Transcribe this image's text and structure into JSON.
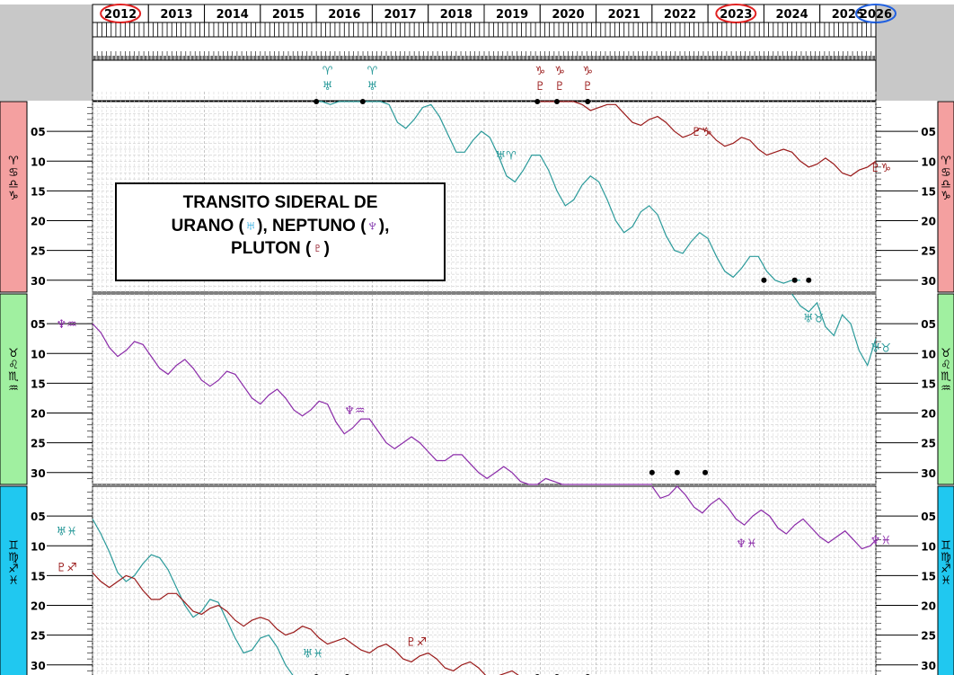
{
  "chart_data": {
    "type": "line",
    "title_parts": [
      "TRANSITO SIDERAL DE",
      "URANO (",
      "♅",
      "), NEPTUNO (",
      "♆",
      "),",
      "PLUTON (",
      "♇",
      ")"
    ],
    "years": [
      "2012",
      "2013",
      "2014",
      "2015",
      "2016",
      "2017",
      "2018",
      "2019",
      "2020",
      "2021",
      "2022",
      "2023",
      "2024",
      "2025",
      "2026"
    ],
    "circled_years": {
      "2012": "#e02020",
      "2023": "#e02020",
      "2026": "#2060e0"
    },
    "ytick_labels": [
      "05",
      "10",
      "15",
      "20",
      "25",
      "30"
    ],
    "bands": [
      {
        "signs": [
          "♈",
          "♋",
          "♎",
          "♑"
        ],
        "color": "#f4a0a0"
      },
      {
        "signs": [
          "♉",
          "♌",
          "♏",
          "♒"
        ],
        "color": "#a0f0a0"
      },
      {
        "signs": [
          "♊",
          "♍",
          "♐",
          "♓"
        ],
        "color": "#20c8f0"
      }
    ],
    "series": [
      {
        "planet": "Uranus",
        "color": "#2a9a9a",
        "segments": [
          {
            "band": 2,
            "x": [
              2012.0,
              2012.15,
              2012.3,
              2012.45,
              2012.6,
              2012.75,
              2012.9,
              2013.05,
              2013.2,
              2013.35,
              2013.5,
              2013.65,
              2013.8,
              2013.95,
              2014.1,
              2014.25,
              2014.4,
              2014.55,
              2014.7,
              2014.85,
              2015.0,
              2015.15,
              2015.3,
              2015.45,
              2015.6,
              2015.75,
              2015.9,
              2016.0
            ],
            "y": [
              5.5,
              8.0,
              11.0,
              14.5,
              16.0,
              15.0,
              13.0,
              11.5,
              12.0,
              14.0,
              17.0,
              20.0,
              22.0,
              21.0,
              19.0,
              19.5,
              22.5,
              25.5,
              28.0,
              27.5,
              25.5,
              25.0,
              27.0,
              30.0,
              32.0,
              33.0,
              34.0,
              34.5
            ]
          },
          {
            "band": 0,
            "x": [
              2016.0,
              2016.1,
              2016.25,
              2016.4,
              2016.55,
              2016.7,
              2016.85,
              2017.0,
              2017.15,
              2017.3,
              2017.45,
              2017.6,
              2017.75,
              2017.9,
              2018.05,
              2018.2,
              2018.35,
              2018.5,
              2018.65,
              2018.8,
              2018.95,
              2019.1,
              2019.25,
              2019.4,
              2019.55,
              2019.7,
              2019.85,
              2020.0,
              2020.15,
              2020.3,
              2020.45,
              2020.6,
              2020.75,
              2020.9,
              2021.05,
              2021.2,
              2021.35,
              2021.5,
              2021.65,
              2021.8,
              2021.95,
              2022.1,
              2022.25,
              2022.4,
              2022.55,
              2022.7,
              2022.85,
              2023.0,
              2023.15,
              2023.3,
              2023.45,
              2023.6,
              2023.75,
              2023.9,
              2024.05,
              2024.2,
              2024.35,
              2024.5,
              2024.65
            ],
            "y": [
              0.0,
              0.0,
              0.5,
              0.0,
              0.0,
              0.0,
              0.0,
              0.0,
              0.0,
              0.5,
              3.5,
              4.5,
              3.0,
              1.0,
              0.5,
              2.5,
              5.5,
              8.5,
              8.5,
              6.5,
              5.0,
              6.0,
              9.0,
              12.5,
              13.5,
              11.5,
              9.0,
              9.0,
              11.5,
              15.0,
              17.5,
              16.5,
              14.0,
              12.5,
              13.5,
              16.5,
              20.0,
              22.0,
              21.0,
              18.5,
              17.5,
              19.0,
              22.5,
              25.0,
              25.5,
              23.5,
              22.0,
              23.0,
              26.0,
              28.5,
              29.5,
              28.0,
              26.0,
              26.0,
              28.5,
              30.0,
              30.5,
              30.0,
              30.0
            ]
          },
          {
            "band": 1,
            "x": [
              2024.5,
              2024.65,
              2024.8,
              2024.95,
              2025.1,
              2025.25,
              2025.4,
              2025.55,
              2025.7,
              2025.85,
              2026.0
            ],
            "y": [
              0.0,
              2.0,
              3.0,
              1.5,
              5.5,
              7.0,
              3.5,
              5.0,
              9.5,
              12.0,
              7.5
            ]
          }
        ]
      },
      {
        "planet": "Neptune",
        "color": "#8a2aa8",
        "segments": [
          {
            "band": 1,
            "x": [
              2012.0,
              2012.15,
              2012.3,
              2012.45,
              2012.6,
              2012.75,
              2012.9,
              2013.05,
              2013.2,
              2013.35,
              2013.5,
              2013.65,
              2013.8,
              2013.95,
              2014.1,
              2014.25,
              2014.4,
              2014.55,
              2014.7,
              2014.85,
              2015.0,
              2015.15,
              2015.3,
              2015.45,
              2015.6,
              2015.75,
              2015.9,
              2016.05,
              2016.2,
              2016.35,
              2016.5,
              2016.65,
              2016.8,
              2016.95,
              2017.1,
              2017.25,
              2017.4,
              2017.55,
              2017.7,
              2017.85,
              2018.0,
              2018.15,
              2018.3,
              2018.45,
              2018.6,
              2018.75,
              2018.9,
              2019.05,
              2019.2,
              2019.35,
              2019.5,
              2019.65,
              2019.8,
              2019.95,
              2020.1,
              2020.25,
              2020.4,
              2020.55,
              2020.7,
              2020.85,
              2021.0,
              2021.15,
              2021.3,
              2021.45,
              2021.6,
              2021.75,
              2021.9,
              2022.0
            ],
            "y": [
              5.0,
              6.5,
              9.0,
              10.5,
              9.5,
              8.0,
              8.5,
              10.5,
              12.5,
              13.5,
              12.0,
              11.0,
              12.5,
              14.5,
              15.5,
              14.5,
              13.0,
              13.5,
              15.5,
              17.5,
              18.5,
              17.0,
              16.0,
              17.5,
              19.5,
              20.5,
              19.5,
              18.0,
              18.5,
              21.5,
              23.5,
              22.5,
              21.0,
              21.0,
              23.0,
              25.0,
              26.0,
              25.0,
              24.0,
              25.0,
              26.5,
              28.0,
              28.0,
              27.0,
              27.0,
              28.5,
              30.0,
              31.0,
              30.0,
              29.0,
              30.0,
              31.5,
              33.0,
              32.5,
              31.0,
              31.5,
              33.0,
              34.5,
              34.5,
              33.0,
              33.0,
              34.5,
              36.0,
              36.5,
              35.0,
              35.0,
              36.5,
              37.5
            ]
          },
          {
            "band": 2,
            "x": [
              2022.0,
              2022.15,
              2022.3,
              2022.45,
              2022.6,
              2022.75,
              2022.9,
              2023.05,
              2023.2,
              2023.35,
              2023.5,
              2023.65,
              2023.8,
              2023.95,
              2024.1,
              2024.25,
              2024.4,
              2024.55,
              2024.7,
              2024.85,
              2025.0,
              2025.15,
              2025.3,
              2025.45,
              2025.6,
              2025.75,
              2025.9,
              2026.0
            ],
            "y": [
              0.0,
              2.0,
              1.5,
              0.0,
              1.5,
              3.5,
              4.5,
              3.0,
              2.0,
              3.5,
              5.5,
              6.5,
              5.0,
              4.0,
              5.0,
              7.0,
              8.0,
              6.5,
              5.5,
              7.0,
              8.5,
              9.5,
              8.5,
              7.5,
              9.0,
              10.5,
              10.0,
              9.0
            ]
          }
        ]
      },
      {
        "planet": "Pluto",
        "color": "#9a1a1a",
        "segments": [
          {
            "band": 2,
            "x": [
              2012.0,
              2012.15,
              2012.3,
              2012.45,
              2012.6,
              2012.75,
              2012.9,
              2013.05,
              2013.2,
              2013.35,
              2013.5,
              2013.65,
              2013.8,
              2013.95,
              2014.1,
              2014.25,
              2014.4,
              2014.55,
              2014.7,
              2014.85,
              2015.0,
              2015.15,
              2015.3,
              2015.45,
              2015.6,
              2015.75,
              2015.9,
              2016.05,
              2016.2,
              2016.35,
              2016.5,
              2016.65,
              2016.8,
              2016.95,
              2017.1,
              2017.25,
              2017.4,
              2017.55,
              2017.7,
              2017.85,
              2018.0,
              2018.15,
              2018.3,
              2018.45,
              2018.6,
              2018.75,
              2018.9,
              2019.05,
              2019.2,
              2019.35,
              2019.5,
              2019.65,
              2019.8,
              2019.95,
              2020.0
            ],
            "y": [
              14.5,
              16.0,
              17.0,
              16.0,
              15.0,
              15.5,
              17.5,
              19.0,
              19.0,
              18.0,
              18.0,
              19.5,
              21.0,
              21.5,
              20.5,
              20.0,
              21.0,
              22.5,
              23.5,
              22.5,
              22.0,
              22.5,
              24.0,
              25.0,
              24.5,
              23.5,
              24.0,
              25.5,
              26.5,
              26.0,
              25.5,
              26.5,
              27.5,
              28.0,
              27.0,
              26.5,
              27.5,
              29.0,
              29.5,
              28.5,
              28.0,
              29.0,
              30.5,
              31.0,
              30.0,
              29.5,
              30.5,
              32.0,
              32.5,
              31.5,
              31.0,
              32.0,
              33.5,
              33.5,
              34.0
            ]
          },
          {
            "band": 0,
            "x": [
              2020.0,
              2020.15,
              2020.3,
              2020.45,
              2020.6,
              2020.75,
              2020.9,
              2021.05,
              2021.2,
              2021.35,
              2021.5,
              2021.65,
              2021.8,
              2021.95,
              2022.1,
              2022.25,
              2022.4,
              2022.55,
              2022.7,
              2022.85,
              2023.0,
              2023.15,
              2023.3,
              2023.45,
              2023.6,
              2023.75,
              2023.9,
              2024.05,
              2024.2,
              2024.35,
              2024.5,
              2024.65,
              2024.8,
              2024.95,
              2025.1,
              2025.25,
              2025.4,
              2025.55,
              2025.7,
              2025.85,
              2026.0
            ],
            "y": [
              0.0,
              0.0,
              0.0,
              0.0,
              0.0,
              0.5,
              1.5,
              1.0,
              0.5,
              0.5,
              2.0,
              3.5,
              4.0,
              3.0,
              2.5,
              3.5,
              5.0,
              6.0,
              5.5,
              4.5,
              5.0,
              6.5,
              7.5,
              7.0,
              6.0,
              6.5,
              8.0,
              9.0,
              8.5,
              8.0,
              8.5,
              10.0,
              11.0,
              10.5,
              9.5,
              10.5,
              12.0,
              12.5,
              11.5,
              11.0,
              10.0
            ]
          }
        ]
      }
    ],
    "annotations": [
      {
        "text": "♈\n♅",
        "x": 2016.2,
        "color": "#2a9a9a"
      },
      {
        "text": "♈\n♅",
        "x": 2017.0,
        "color": "#2a9a9a"
      },
      {
        "text": "♑\n♇",
        "x": 2020.0,
        "color": "#9a1a1a"
      },
      {
        "text": "♑\n♇",
        "x": 2020.35,
        "color": "#9a1a1a"
      },
      {
        "text": "♑\n♇",
        "x": 2020.85,
        "color": "#9a1a1a"
      },
      {
        "text": "♇♑",
        "x": 2022.7,
        "band": 0,
        "y": 5.0,
        "color": "#9a1a1a"
      },
      {
        "text": "♅♈",
        "x": 2019.2,
        "band": 0,
        "y": 9.0,
        "color": "#2a9a9a"
      },
      {
        "text": "♇♑",
        "x": 2025.9,
        "band": 0,
        "y": 11.0,
        "color": "#9a1a1a"
      },
      {
        "text": "♅♉",
        "x": 2024.7,
        "band": 1,
        "y": 4.0,
        "color": "#2a9a9a"
      },
      {
        "text": "♅♉",
        "x": 2025.9,
        "band": 1,
        "y": 9.0,
        "color": "#2a9a9a"
      },
      {
        "text": "♆♒",
        "x": 2011.35,
        "band": 1,
        "y": 5.0,
        "color": "#8a2aa8"
      },
      {
        "text": "♆♒",
        "x": 2016.5,
        "band": 1,
        "y": 19.5,
        "color": "#8a2aa8"
      },
      {
        "text": "♆♓",
        "x": 2023.5,
        "band": 2,
        "y": 9.5,
        "color": "#8a2aa8"
      },
      {
        "text": "♆♓",
        "x": 2025.9,
        "band": 2,
        "y": 9.0,
        "color": "#8a2aa8"
      },
      {
        "text": "♅♓",
        "x": 2011.35,
        "band": 2,
        "y": 7.5,
        "color": "#2a9a9a"
      },
      {
        "text": "♇♐",
        "x": 2011.35,
        "band": 2,
        "y": 13.5,
        "color": "#9a1a1a"
      },
      {
        "text": "♅♓",
        "x": 2015.75,
        "band": 2,
        "y": 28.0,
        "color": "#2a9a9a"
      },
      {
        "text": "♇♐",
        "x": 2017.6,
        "band": 2,
        "y": 26.0,
        "color": "#9a1a1a"
      }
    ],
    "station_dots": [
      {
        "x": 2016.0,
        "band": 0,
        "y": 0.0
      },
      {
        "x": 2016.83,
        "band": 0,
        "y": 0.0
      },
      {
        "x": 2019.95,
        "band": 0,
        "y": 0.0
      },
      {
        "x": 2020.3,
        "band": 0,
        "y": 0.0
      },
      {
        "x": 2020.85,
        "band": 0,
        "y": 0.0
      },
      {
        "x": 2024.0,
        "band": 0,
        "y": 30.0
      },
      {
        "x": 2024.55,
        "band": 0,
        "y": 30.0
      },
      {
        "x": 2024.8,
        "band": 0,
        "y": 30.0
      },
      {
        "x": 2022.0,
        "band": 1,
        "y": 30.0
      },
      {
        "x": 2022.45,
        "band": 1,
        "y": 30.0
      },
      {
        "x": 2022.95,
        "band": 1,
        "y": 30.0
      },
      {
        "x": 2016.0,
        "band": 2,
        "y": 34.0
      },
      {
        "x": 2016.55,
        "band": 2,
        "y": 34.0
      },
      {
        "x": 2019.95,
        "band": 2,
        "y": 34.0
      },
      {
        "x": 2020.3,
        "band": 2,
        "y": 34.0
      },
      {
        "x": 2020.85,
        "band": 2,
        "y": 34.0
      }
    ],
    "xlim": [
      2012,
      2026
    ],
    "ylim_per_band": [
      0,
      32
    ]
  }
}
